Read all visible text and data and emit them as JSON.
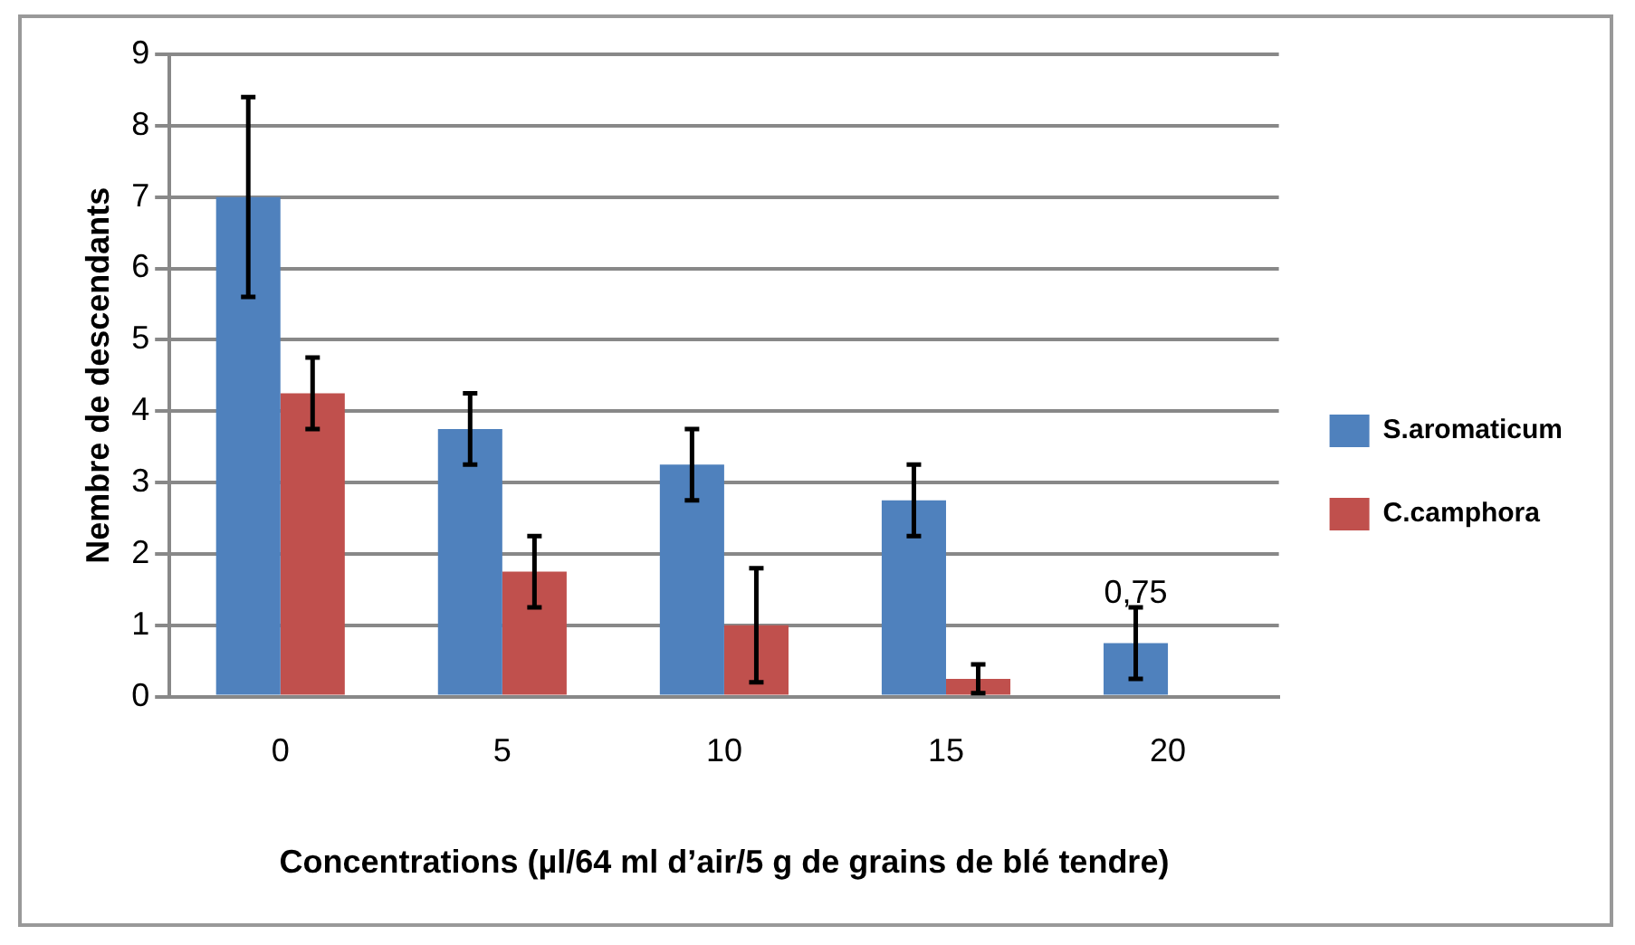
{
  "chart_data": {
    "type": "bar",
    "xlabel": "Concentrations (µl/64 ml d’air/5 g de grains de blé tendre)",
    "ylabel": "Nembre de descendants",
    "categories": [
      "0",
      "5",
      "10",
      "15",
      "20"
    ],
    "series": [
      {
        "name": "S.aromaticum",
        "color": "#4f81bd",
        "values": [
          7,
          3.75,
          3.25,
          2.75,
          0.75
        ],
        "errors": [
          1.4,
          0.5,
          0.5,
          0.5,
          0.5
        ],
        "value_labels": [
          null,
          null,
          null,
          null,
          "0,75"
        ]
      },
      {
        "name": "C.camphora",
        "color": "#c0504d",
        "values": [
          4.25,
          1.75,
          1,
          0.25,
          null
        ],
        "errors": [
          0.5,
          0.5,
          0.8,
          0.2,
          null
        ]
      }
    ],
    "ylim": [
      0,
      9
    ],
    "yticks": [
      0,
      1,
      2,
      3,
      4,
      5,
      6,
      7,
      8,
      9
    ],
    "grid": "y",
    "legend": "right"
  }
}
